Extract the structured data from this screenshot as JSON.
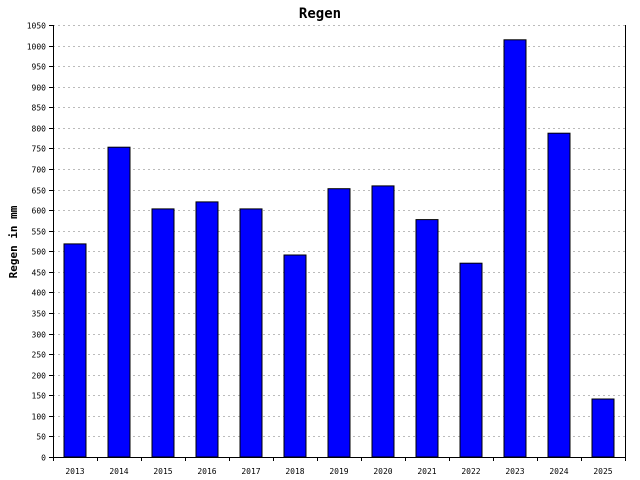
{
  "chart_data": {
    "type": "bar",
    "title": "Regen",
    "xlabel": "",
    "ylabel": "Regen in mm",
    "categories": [
      "2013",
      "2014",
      "2015",
      "2016",
      "2017",
      "2018",
      "2019",
      "2020",
      "2021",
      "2022",
      "2023",
      "2024",
      "2025"
    ],
    "values": [
      518,
      753,
      603,
      620,
      603,
      491,
      652,
      659,
      577,
      471,
      1014,
      787,
      141
    ],
    "ylim": [
      0,
      1050
    ],
    "yticks": [
      0,
      50,
      100,
      150,
      200,
      250,
      300,
      350,
      400,
      450,
      500,
      550,
      600,
      650,
      700,
      750,
      800,
      850,
      900,
      950,
      1000,
      1050
    ],
    "grid": true,
    "bar_color": "#0000ff",
    "bar_edge_color": "#000000",
    "grid_color": "#bbbbbb"
  }
}
